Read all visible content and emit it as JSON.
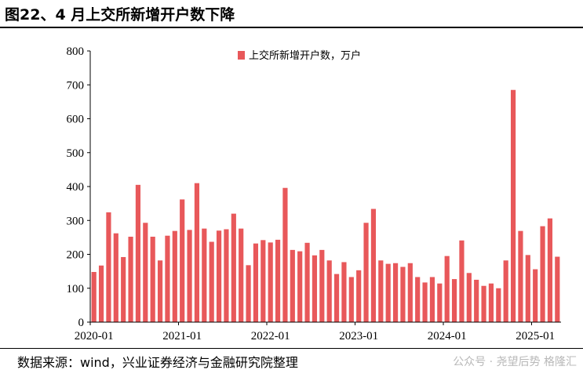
{
  "header": {
    "title": "图22、4 月上交所新增开户数下降"
  },
  "footer": {
    "source": "数据来源：wind，兴业证券经济与金融研究院整理",
    "watermark": "公众号 · 尧望后势  格隆汇"
  },
  "colors": {
    "bar": "#e8585a"
  },
  "chart_data": {
    "type": "bar",
    "title": "图22、4 月上交所新增开户数下降",
    "xlabel": "",
    "ylabel": "",
    "ylim": [
      0,
      800
    ],
    "yticks": [
      0,
      100,
      200,
      300,
      400,
      500,
      600,
      700,
      800
    ],
    "xtick_labels": [
      "2020-01",
      "2021-01",
      "2022-01",
      "2023-01",
      "2024-01",
      "2025-01"
    ],
    "xtick_indices": [
      0,
      12,
      24,
      36,
      48,
      60
    ],
    "legend": {
      "label": "上交所新增开户数，万户",
      "placement": "top-center"
    },
    "categories": [
      "2020-01",
      "2020-02",
      "2020-03",
      "2020-04",
      "2020-05",
      "2020-06",
      "2020-07",
      "2020-08",
      "2020-09",
      "2020-10",
      "2020-11",
      "2020-12",
      "2021-01",
      "2021-02",
      "2021-03",
      "2021-04",
      "2021-05",
      "2021-06",
      "2021-07",
      "2021-08",
      "2021-09",
      "2021-10",
      "2021-11",
      "2021-12",
      "2022-01",
      "2022-02",
      "2022-03",
      "2022-04",
      "2022-05",
      "2022-06",
      "2022-07",
      "2022-08",
      "2022-09",
      "2022-10",
      "2022-11",
      "2022-12",
      "2023-01",
      "2023-02",
      "2023-03",
      "2023-04",
      "2023-05",
      "2023-06",
      "2023-07",
      "2023-08",
      "2023-09",
      "2023-10",
      "2023-11",
      "2023-12",
      "2024-01",
      "2024-02",
      "2024-03",
      "2024-04",
      "2024-05",
      "2024-06",
      "2024-07",
      "2024-08",
      "2024-09",
      "2024-10",
      "2024-11",
      "2024-12",
      "2025-01",
      "2025-02",
      "2025-03",
      "2025-04"
    ],
    "series": [
      {
        "name": "上交所新增开户数，万户",
        "values": [
          148,
          167,
          324,
          262,
          192,
          252,
          405,
          293,
          252,
          182,
          255,
          269,
          362,
          272,
          410,
          276,
          237,
          270,
          274,
          320,
          276,
          168,
          232,
          242,
          235,
          243,
          396,
          213,
          209,
          234,
          197,
          213,
          182,
          142,
          177,
          133,
          153,
          293,
          334,
          182,
          172,
          174,
          163,
          174,
          133,
          117,
          133,
          114,
          195,
          127,
          241,
          145,
          125,
          107,
          114,
          100,
          182,
          685,
          269,
          198,
          156,
          283,
          306,
          193
        ]
      }
    ]
  }
}
